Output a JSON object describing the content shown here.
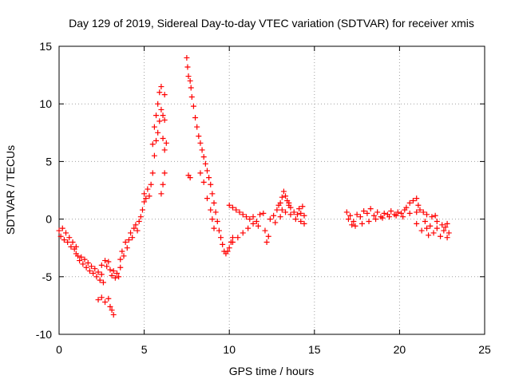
{
  "chart_data": {
    "type": "scatter",
    "title": "Day 129 of 2019, Sidereal Day-to-day VTEC variation (SDTVAR) for receiver xmis",
    "xlabel": "GPS time / hours",
    "ylabel": "SDTVAR / TECUs",
    "xlim": [
      0,
      25
    ],
    "ylim": [
      -10,
      15
    ],
    "x_ticks": [
      0,
      5,
      10,
      15,
      20,
      25
    ],
    "y_ticks": [
      -10,
      -5,
      0,
      5,
      10,
      15
    ],
    "x_tick_labels": [
      "0",
      "5",
      "10",
      "15",
      "20",
      "25"
    ],
    "y_tick_labels": [
      "-10",
      "-5",
      "0",
      "5",
      "10",
      "15"
    ],
    "grid": true,
    "marker": "+",
    "series": [
      {
        "name": "SDTVAR",
        "color": "#ff0000",
        "points": [
          [
            0.0,
            -1.0
          ],
          [
            0.1,
            -1.5
          ],
          [
            0.2,
            -0.8
          ],
          [
            0.3,
            -1.8
          ],
          [
            0.4,
            -1.2
          ],
          [
            0.5,
            -2.0
          ],
          [
            0.6,
            -1.6
          ],
          [
            0.7,
            -2.4
          ],
          [
            0.8,
            -2.0
          ],
          [
            0.9,
            -2.6
          ],
          [
            1.0,
            -2.4
          ],
          [
            1.0,
            -3.0
          ],
          [
            1.1,
            -3.2
          ],
          [
            1.2,
            -3.6
          ],
          [
            1.3,
            -3.3
          ],
          [
            1.4,
            -3.9
          ],
          [
            1.5,
            -3.5
          ],
          [
            1.6,
            -4.2
          ],
          [
            1.7,
            -3.8
          ],
          [
            1.8,
            -4.5
          ],
          [
            1.9,
            -4.1
          ],
          [
            2.0,
            -4.7
          ],
          [
            2.1,
            -4.3
          ],
          [
            2.2,
            -5.0
          ],
          [
            2.3,
            -4.6
          ],
          [
            2.4,
            -5.3
          ],
          [
            2.5,
            -4.8
          ],
          [
            2.6,
            -5.5
          ],
          [
            2.5,
            -4.0
          ],
          [
            2.7,
            -3.6
          ],
          [
            2.8,
            -4.1
          ],
          [
            2.9,
            -3.7
          ],
          [
            3.0,
            -4.4
          ],
          [
            3.1,
            -4.9
          ],
          [
            3.2,
            -4.5
          ],
          [
            3.3,
            -5.1
          ],
          [
            3.4,
            -4.7
          ],
          [
            3.5,
            -5.0
          ],
          [
            3.6,
            -4.2
          ],
          [
            3.6,
            -3.5
          ],
          [
            3.7,
            -2.8
          ],
          [
            3.8,
            -3.2
          ],
          [
            3.9,
            -2.0
          ],
          [
            4.0,
            -2.5
          ],
          [
            4.1,
            -1.8
          ],
          [
            4.2,
            -1.2
          ],
          [
            4.3,
            -1.6
          ],
          [
            4.4,
            -0.8
          ],
          [
            4.5,
            -0.5
          ],
          [
            4.6,
            -1.0
          ],
          [
            4.7,
            -0.2
          ],
          [
            4.8,
            0.2
          ],
          [
            4.9,
            0.8
          ],
          [
            5.0,
            1.5
          ],
          [
            5.0,
            2.2
          ],
          [
            5.1,
            1.8
          ],
          [
            5.2,
            2.6
          ],
          [
            5.3,
            2.0
          ],
          [
            5.4,
            3.0
          ],
          [
            5.5,
            4.0
          ],
          [
            5.5,
            6.5
          ],
          [
            5.6,
            5.5
          ],
          [
            5.6,
            8.0
          ],
          [
            5.7,
            6.8
          ],
          [
            5.7,
            9.0
          ],
          [
            5.8,
            7.5
          ],
          [
            5.8,
            10.0
          ],
          [
            5.9,
            8.5
          ],
          [
            5.9,
            11.0
          ],
          [
            6.0,
            9.5
          ],
          [
            6.0,
            11.5
          ],
          [
            6.1,
            7.0
          ],
          [
            6.2,
            6.0
          ],
          [
            6.3,
            6.6
          ],
          [
            6.2,
            4.0
          ],
          [
            6.1,
            3.0
          ],
          [
            6.0,
            2.2
          ],
          [
            6.1,
            9.0
          ],
          [
            6.2,
            10.8
          ],
          [
            6.2,
            8.6
          ],
          [
            7.5,
            14.0
          ],
          [
            7.55,
            13.2
          ],
          [
            7.6,
            12.4
          ],
          [
            7.7,
            12.0
          ],
          [
            7.75,
            11.4
          ],
          [
            7.8,
            10.6
          ],
          [
            7.9,
            9.8
          ],
          [
            8.0,
            8.8
          ],
          [
            8.1,
            8.0
          ],
          [
            8.2,
            7.2
          ],
          [
            8.3,
            6.6
          ],
          [
            8.4,
            6.0
          ],
          [
            8.5,
            5.4
          ],
          [
            8.6,
            4.8
          ],
          [
            8.7,
            4.2
          ],
          [
            8.8,
            3.6
          ],
          [
            8.9,
            3.0
          ],
          [
            9.0,
            2.2
          ],
          [
            9.1,
            1.4
          ],
          [
            9.2,
            0.6
          ],
          [
            9.3,
            -0.2
          ],
          [
            9.4,
            -1.0
          ],
          [
            9.5,
            -1.6
          ],
          [
            9.6,
            -2.2
          ],
          [
            9.7,
            -2.8
          ],
          [
            9.8,
            -3.0
          ],
          [
            9.9,
            -2.8
          ],
          [
            10.0,
            -2.5
          ],
          [
            10.1,
            -2.0
          ],
          [
            10.2,
            -1.6
          ],
          [
            7.6,
            3.8
          ],
          [
            7.7,
            3.6
          ],
          [
            8.3,
            4.0
          ],
          [
            8.5,
            3.2
          ],
          [
            8.7,
            1.8
          ],
          [
            8.9,
            0.8
          ],
          [
            9.0,
            0.0
          ],
          [
            9.1,
            -0.8
          ],
          [
            10.0,
            1.2
          ],
          [
            10.2,
            1.0
          ],
          [
            10.4,
            0.8
          ],
          [
            10.6,
            0.6
          ],
          [
            10.8,
            0.4
          ],
          [
            11.0,
            0.2
          ],
          [
            11.2,
            0.0
          ],
          [
            11.4,
            0.2
          ],
          [
            11.6,
            -0.2
          ],
          [
            11.8,
            0.4
          ],
          [
            10.2,
            -2.0
          ],
          [
            10.5,
            -1.6
          ],
          [
            10.8,
            -1.2
          ],
          [
            11.1,
            -0.8
          ],
          [
            11.4,
            -0.4
          ],
          [
            11.7,
            -0.6
          ],
          [
            12.0,
            0.5
          ],
          [
            12.1,
            -1.0
          ],
          [
            12.2,
            -2.0
          ],
          [
            12.3,
            -1.5
          ],
          [
            12.4,
            0.0
          ],
          [
            12.6,
            0.3
          ],
          [
            12.8,
            0.8
          ],
          [
            13.0,
            1.4
          ],
          [
            13.1,
            1.9
          ],
          [
            13.2,
            2.4
          ],
          [
            13.3,
            2.0
          ],
          [
            13.4,
            1.6
          ],
          [
            13.5,
            1.2
          ],
          [
            13.6,
            1.0
          ],
          [
            13.8,
            0.6
          ],
          [
            14.0,
            0.4
          ],
          [
            14.2,
            0.5
          ],
          [
            14.4,
            0.3
          ],
          [
            12.7,
            -0.3
          ],
          [
            13.0,
            0.2
          ],
          [
            13.3,
            0.6
          ],
          [
            13.6,
            0.4
          ],
          [
            13.9,
            0.0
          ],
          [
            14.2,
            -0.2
          ],
          [
            14.4,
            -0.4
          ],
          [
            12.9,
            1.2
          ],
          [
            13.1,
            0.8
          ],
          [
            13.5,
            1.4
          ],
          [
            14.1,
            0.9
          ],
          [
            14.3,
            1.1
          ],
          [
            16.9,
            0.6
          ],
          [
            17.0,
            0.0
          ],
          [
            17.1,
            0.3
          ],
          [
            17.2,
            -0.5
          ],
          [
            17.3,
            -0.2
          ],
          [
            17.5,
            0.4
          ],
          [
            17.7,
            0.2
          ],
          [
            17.9,
            0.7
          ],
          [
            18.1,
            0.5
          ],
          [
            18.3,
            0.9
          ],
          [
            18.5,
            0.3
          ],
          [
            18.7,
            0.6
          ],
          [
            18.9,
            0.2
          ],
          [
            19.1,
            0.5
          ],
          [
            19.3,
            0.4
          ],
          [
            19.5,
            0.7
          ],
          [
            19.7,
            0.4
          ],
          [
            19.9,
            0.6
          ],
          [
            20.1,
            0.5
          ],
          [
            20.3,
            0.8
          ],
          [
            17.4,
            -0.6
          ],
          [
            17.8,
            -0.4
          ],
          [
            18.2,
            -0.2
          ],
          [
            18.6,
            0.0
          ],
          [
            19.0,
            0.1
          ],
          [
            19.4,
            0.2
          ],
          [
            19.8,
            0.3
          ],
          [
            20.2,
            0.2
          ],
          [
            20.6,
            0.5
          ],
          [
            21.0,
            0.6
          ],
          [
            20.4,
            1.0
          ],
          [
            20.6,
            1.4
          ],
          [
            20.8,
            1.6
          ],
          [
            21.0,
            1.8
          ],
          [
            21.1,
            1.2
          ],
          [
            21.2,
            0.8
          ],
          [
            21.4,
            0.6
          ],
          [
            21.5,
            -0.2
          ],
          [
            21.6,
            -0.8
          ],
          [
            21.7,
            -1.4
          ],
          [
            21.8,
            -0.6
          ],
          [
            22.0,
            -1.2
          ],
          [
            22.2,
            -0.8
          ],
          [
            22.4,
            -1.5
          ],
          [
            22.6,
            -1.0
          ],
          [
            22.8,
            -1.6
          ],
          [
            21.6,
            0.4
          ],
          [
            21.9,
            0.2
          ],
          [
            22.2,
            -0.2
          ],
          [
            22.5,
            -0.5
          ],
          [
            22.8,
            -0.4
          ],
          [
            21.3,
            -1.0
          ],
          [
            21.0,
            -0.4
          ],
          [
            22.1,
            0.3
          ],
          [
            22.7,
            -0.7
          ],
          [
            22.9,
            -1.2
          ],
          [
            2.3,
            -7.0
          ],
          [
            2.5,
            -6.8
          ],
          [
            2.7,
            -7.2
          ],
          [
            2.9,
            -6.9
          ],
          [
            3.0,
            -7.6
          ],
          [
            3.1,
            -7.9
          ],
          [
            3.2,
            -8.3
          ]
        ]
      }
    ]
  }
}
